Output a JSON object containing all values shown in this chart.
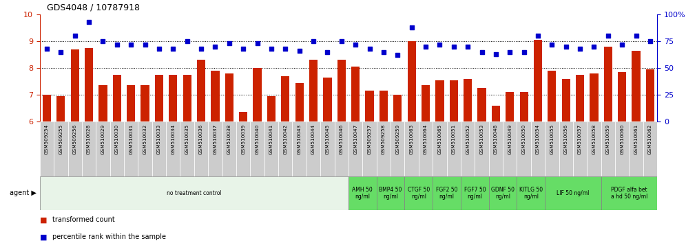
{
  "title": "GDS4048 / 10787918",
  "samples": [
    "GSM509254",
    "GSM509255",
    "GSM509256",
    "GSM510028",
    "GSM510029",
    "GSM510030",
    "GSM510031",
    "GSM510032",
    "GSM510033",
    "GSM510034",
    "GSM510035",
    "GSM510036",
    "GSM510037",
    "GSM510038",
    "GSM510039",
    "GSM510040",
    "GSM510041",
    "GSM510042",
    "GSM510043",
    "GSM510044",
    "GSM510045",
    "GSM510046",
    "GSM510047",
    "GSM509257",
    "GSM509258",
    "GSM509259",
    "GSM510063",
    "GSM510064",
    "GSM510065",
    "GSM510051",
    "GSM510052",
    "GSM510053",
    "GSM510048",
    "GSM510049",
    "GSM510050",
    "GSM510054",
    "GSM510055",
    "GSM510056",
    "GSM510057",
    "GSM510058",
    "GSM510059",
    "GSM510060",
    "GSM510061",
    "GSM510062"
  ],
  "bar_values": [
    7.0,
    6.95,
    8.7,
    8.75,
    7.35,
    7.75,
    7.35,
    7.35,
    7.75,
    7.75,
    7.75,
    8.3,
    7.9,
    7.8,
    6.35,
    8.0,
    6.95,
    7.7,
    7.45,
    8.3,
    7.65,
    8.3,
    8.05,
    7.15,
    7.15,
    7.0,
    9.0,
    7.35,
    7.55,
    7.55,
    7.6,
    7.25,
    6.6,
    7.1,
    7.1,
    9.05,
    7.9,
    7.6,
    7.75,
    7.8,
    8.8,
    7.85,
    8.65,
    7.95
  ],
  "percentile_values": [
    68,
    65,
    80,
    93,
    75,
    72,
    72,
    72,
    68,
    68,
    75,
    68,
    70,
    73,
    68,
    73,
    68,
    68,
    66,
    75,
    65,
    75,
    72,
    68,
    65,
    62,
    88,
    70,
    72,
    70,
    70,
    65,
    63,
    65,
    65,
    80,
    72,
    70,
    68,
    70,
    80,
    72,
    80,
    75
  ],
  "ylim_left": [
    6,
    10
  ],
  "ylim_right": [
    0,
    100
  ],
  "yticks_left": [
    6,
    7,
    8,
    9,
    10
  ],
  "yticks_right": [
    0,
    25,
    50,
    75,
    100
  ],
  "bar_color": "#cc2200",
  "dot_color": "#0000cc",
  "agents": [
    {
      "label": "no treatment control",
      "start": 0,
      "end": 21,
      "color": "#e8f4e8"
    },
    {
      "label": "AMH 50\nng/ml",
      "start": 22,
      "end": 23,
      "color": "#66dd66"
    },
    {
      "label": "BMP4 50\nng/ml",
      "start": 24,
      "end": 25,
      "color": "#66dd66"
    },
    {
      "label": "CTGF 50\nng/ml",
      "start": 26,
      "end": 27,
      "color": "#66dd66"
    },
    {
      "label": "FGF2 50\nng/ml",
      "start": 28,
      "end": 29,
      "color": "#66dd66"
    },
    {
      "label": "FGF7 50\nng/ml",
      "start": 30,
      "end": 31,
      "color": "#66dd66"
    },
    {
      "label": "GDNF 50\nng/ml",
      "start": 32,
      "end": 33,
      "color": "#66dd66"
    },
    {
      "label": "KITLG 50\nng/ml",
      "start": 34,
      "end": 35,
      "color": "#66dd66"
    },
    {
      "label": "LIF 50 ng/ml",
      "start": 36,
      "end": 39,
      "color": "#66dd66"
    },
    {
      "label": "PDGF alfa bet\na hd 50 ng/ml",
      "start": 40,
      "end": 43,
      "color": "#66dd66"
    }
  ],
  "x_label_bg": "#cccccc",
  "sep_color": "#111111",
  "grid_yticks": [
    7,
    8,
    9
  ]
}
